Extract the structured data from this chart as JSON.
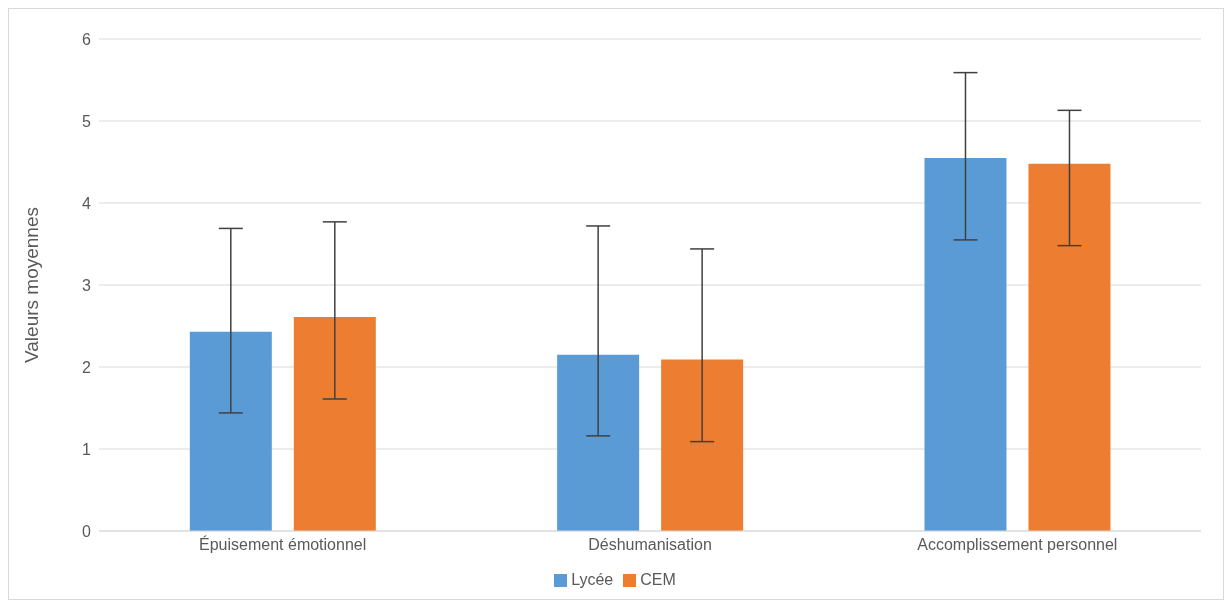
{
  "chart_data": {
    "type": "bar",
    "ylabel": "Valeurs moyennes",
    "categories": [
      "Épuisement émotionnel",
      "Déshumanisation",
      "Accomplissement personnel"
    ],
    "series": [
      {
        "name": "Lycée",
        "color": "#5b9bd5",
        "values": [
          2.43,
          2.15,
          4.55
        ],
        "errors": [
          [
            1.44,
            3.69
          ],
          [
            1.16,
            3.72
          ],
          [
            3.55,
            5.59
          ]
        ]
      },
      {
        "name": "CEM",
        "color": "#ed7d31",
        "values": [
          2.61,
          2.09,
          4.48
        ],
        "errors": [
          [
            1.61,
            3.77
          ],
          [
            1.09,
            3.44
          ],
          [
            3.48,
            5.13
          ]
        ]
      }
    ],
    "ylim": [
      0,
      6
    ],
    "yticks": [
      0,
      1,
      2,
      3,
      4,
      5,
      6
    ],
    "grid": "y",
    "legend": "bottom"
  }
}
